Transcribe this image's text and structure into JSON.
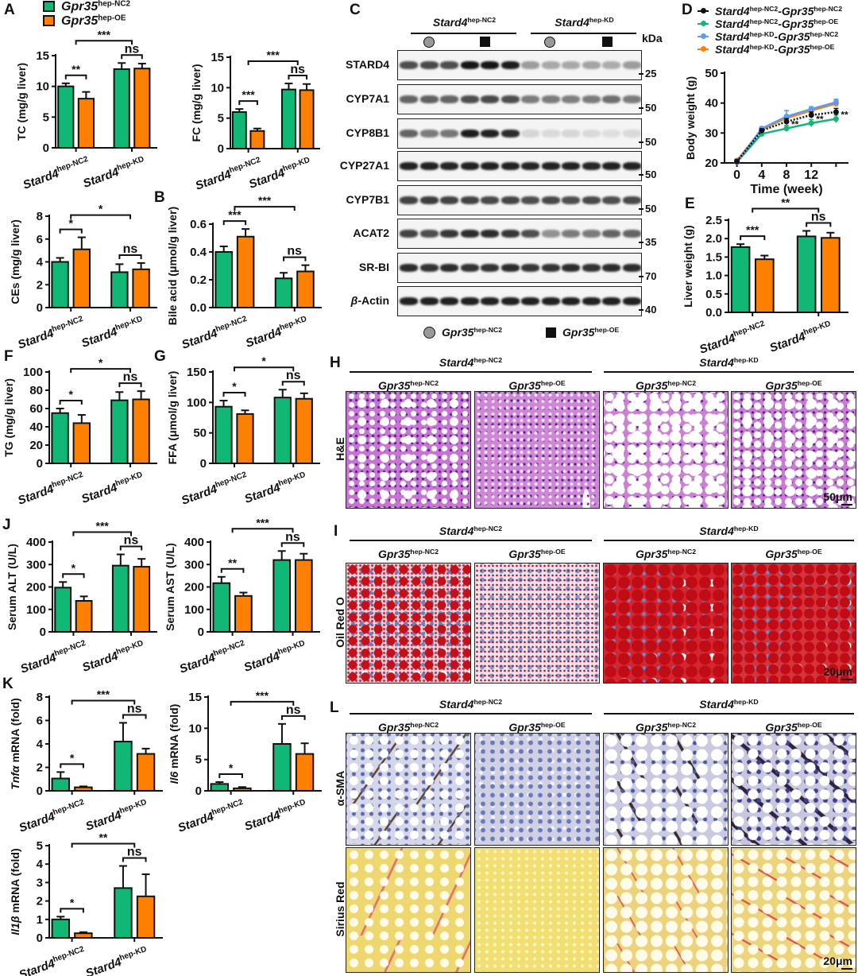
{
  "colors": {
    "nc2": "#10b775",
    "oe": "#ff7f00",
    "kd_nc2": "#5b9cf5",
    "black": "#111111"
  },
  "panels": {
    "A": "A",
    "B": "B",
    "C": "C",
    "D": "D",
    "E": "E",
    "F": "F",
    "G": "G",
    "H": "H",
    "I": "I",
    "J": "J",
    "K": "K",
    "L": "L"
  },
  "legend_A": [
    {
      "gene": "Gpr35",
      "sup": "hep-NC2"
    },
    {
      "gene": "Gpr35",
      "sup": "hep-OE"
    }
  ],
  "groups": {
    "nc2": {
      "gene": "Stard4",
      "sup": "hep-NC2"
    },
    "kd": {
      "gene": "Stard4",
      "sup": "hep-KD"
    }
  },
  "subgroups": {
    "nc2": {
      "gene": "Gpr35",
      "sup": "hep-NC2"
    },
    "oe": {
      "gene": "Gpr35",
      "sup": "hep-OE"
    }
  },
  "blot": {
    "unit": "kDa",
    "rows": [
      {
        "label": "STARD4",
        "kda": "25",
        "intensity": [
          0.7,
          0.72,
          0.7,
          0.95,
          0.95,
          0.92,
          0.35,
          0.3,
          0.3,
          0.32,
          0.28,
          0.35
        ]
      },
      {
        "label": "CYP7A1",
        "kda": "50",
        "intensity": [
          0.6,
          0.62,
          0.6,
          0.7,
          0.72,
          0.7,
          0.5,
          0.5,
          0.48,
          0.5,
          0.55,
          0.5
        ]
      },
      {
        "label": "CYP8B1",
        "kda": "50",
        "intensity": [
          0.6,
          0.5,
          0.52,
          0.92,
          0.9,
          0.85,
          0.1,
          0.08,
          0.1,
          0.08,
          0.06,
          0.08
        ]
      },
      {
        "label": "CYP27A1",
        "kda": "50",
        "intensity": [
          0.9,
          0.9,
          0.88,
          0.9,
          0.9,
          0.9,
          0.88,
          0.9,
          0.9,
          0.88,
          0.9,
          0.9
        ]
      },
      {
        "label": "CYP7B1",
        "kda": "50",
        "intensity": [
          0.75,
          0.78,
          0.75,
          0.75,
          0.72,
          0.74,
          0.7,
          0.72,
          0.7,
          0.72,
          0.7,
          0.72
        ]
      },
      {
        "label": "ACAT2",
        "kda": "35",
        "intensity": [
          0.75,
          0.7,
          0.8,
          0.85,
          0.85,
          0.8,
          0.7,
          0.4,
          0.5,
          0.5,
          0.6,
          0.6
        ]
      },
      {
        "label": "SR-BI",
        "kda": "70",
        "intensity": [
          0.85,
          0.82,
          0.85,
          0.82,
          0.82,
          0.85,
          0.8,
          0.82,
          0.85,
          0.82,
          0.85,
          0.85
        ]
      },
      {
        "label": "β-Actin",
        "kda": "40",
        "intensity": [
          0.9,
          0.9,
          0.9,
          0.9,
          0.9,
          0.9,
          0.9,
          0.9,
          0.9,
          0.9,
          0.9,
          0.9
        ]
      }
    ]
  },
  "histology": {
    "he_label": "H&E",
    "he_scale": "50μm",
    "oro_label": "Oil Red O",
    "oro_scale": "20μm",
    "sma_label": "α-SMA",
    "sr_label": "Sirius Red",
    "sr_scale": "20μm"
  },
  "chart_data": [
    {
      "id": "TC",
      "type": "bar",
      "ylabel": "TC (mg/g liver)",
      "ylim": [
        0,
        15
      ],
      "yticks": [
        "0",
        "5",
        "10",
        "15"
      ],
      "categories": [
        "Stard4 hep-NC2",
        "Stard4 hep-KD"
      ],
      "series": [
        {
          "name": "Gpr35 hep-NC2",
          "values": [
            10.0,
            12.8
          ],
          "errors": [
            0.5,
            1.0
          ]
        },
        {
          "name": "Gpr35 hep-OE",
          "values": [
            8.0,
            12.9
          ],
          "errors": [
            1.1,
            0.8
          ]
        }
      ],
      "significance": {
        "pair_nc2": "**",
        "between": "***",
        "pair_kd": "ns"
      }
    },
    {
      "id": "FC",
      "type": "bar",
      "ylabel": "FC (mg/g liver)",
      "ylim": [
        0,
        15
      ],
      "yticks": [
        "0",
        "5",
        "10",
        "15"
      ],
      "categories": [
        "Stard4 hep-NC2",
        "Stard4 hep-KD"
      ],
      "series": [
        {
          "name": "Gpr35 hep-NC2",
          "values": [
            6.0,
            9.7
          ],
          "errors": [
            0.5,
            1.0
          ]
        },
        {
          "name": "Gpr35 hep-OE",
          "values": [
            2.9,
            9.6
          ],
          "errors": [
            0.4,
            1.0
          ]
        }
      ],
      "significance": {
        "pair_nc2": "***",
        "between": "***",
        "pair_kd": "ns"
      }
    },
    {
      "id": "CE",
      "type": "bar",
      "ylabel": "CEs (mg/g liver)",
      "ylim": [
        0,
        8
      ],
      "yticks": [
        "0",
        "2",
        "4",
        "6",
        "8"
      ],
      "categories": [
        "Stard4 hep-NC2",
        "Stard4 hep-KD"
      ],
      "series": [
        {
          "name": "Gpr35 hep-NC2",
          "values": [
            4.0,
            3.1
          ],
          "errors": [
            0.35,
            0.7
          ]
        },
        {
          "name": "Gpr35 hep-OE",
          "values": [
            5.1,
            3.35
          ],
          "errors": [
            1.05,
            0.55
          ]
        }
      ],
      "significance": {
        "pair_nc2": "*",
        "between": "*",
        "pair_kd": "ns"
      }
    },
    {
      "id": "BA",
      "type": "bar",
      "ylabel": "Bile acid (μmol/g liver)",
      "ylim": [
        0,
        0.6
      ],
      "yticks": [
        "0.0",
        "0.2",
        "0.4",
        "0.6"
      ],
      "categories": [
        "Stard4 hep-NC2",
        "Stard4 hep-KD"
      ],
      "series": [
        {
          "name": "Gpr35 hep-NC2",
          "values": [
            0.4,
            0.21
          ],
          "errors": [
            0.04,
            0.04
          ]
        },
        {
          "name": "Gpr35 hep-OE",
          "values": [
            0.51,
            0.26
          ],
          "errors": [
            0.055,
            0.045
          ]
        }
      ],
      "significance": {
        "pair_nc2": "***",
        "between": "***",
        "pair_kd": "ns"
      }
    },
    {
      "id": "BW",
      "type": "line",
      "ylabel": "Body weight (g)",
      "xlabel": "Time (week)",
      "ylim": [
        20,
        50
      ],
      "xlim": [
        -2,
        18
      ],
      "yticks": [
        "20",
        "30",
        "40",
        "50"
      ],
      "xticks": [
        "0",
        "4",
        "8",
        "12"
      ],
      "x": [
        0,
        4,
        8,
        12,
        16
      ],
      "series": [
        {
          "name": "Stard4 hep-NC2 - Gpr35 hep-NC2",
          "gene1": "Stard4",
          "sup1": "hep-NC2",
          "gene2": "-Gpr35",
          "sup2": "hep-NC2",
          "color": "#111111",
          "dashed": true,
          "values": [
            20.5,
            30.8,
            33.8,
            36.0,
            37.0
          ],
          "errors": [
            0.6,
            0.6,
            1.0,
            1.0,
            1.2
          ]
        },
        {
          "name": "Stard4 hep-NC2 - Gpr35 hep-OE",
          "gene1": "Stard4",
          "sup1": "hep-NC2",
          "gene2": "-Gpr35",
          "sup2": "hep-OE",
          "color": "#10b775",
          "dashed": false,
          "values": [
            20.3,
            29.7,
            31.5,
            33.3,
            34.7
          ],
          "errors": [
            0.6,
            0.8,
            1.0,
            1.2,
            1.3
          ]
        },
        {
          "name": "Stard4 hep-KD - Gpr35 hep-NC2",
          "gene1": "Stard4",
          "sup1": "hep-KD",
          "gene2": "-Gpr35",
          "sup2": "hep-NC2",
          "color": "#5b9cf5",
          "dashed": false,
          "values": [
            20.2,
            31.5,
            35.5,
            38.0,
            40.3
          ],
          "errors": [
            0.6,
            0.6,
            2.0,
            0.8,
            1.0
          ]
        },
        {
          "name": "Stard4 hep-KD - Gpr35 hep-OE",
          "gene1": "Stard4",
          "sup1": "hep-KD",
          "gene2": "-Gpr35",
          "sup2": "hep-OE",
          "color": "#ff7f00",
          "dashed": false,
          "values": [
            20.8,
            31.2,
            35.0,
            37.5,
            39.8
          ],
          "errors": [
            0.6,
            0.6,
            1.0,
            0.8,
            1.0
          ]
        }
      ],
      "annotations": [
        {
          "x": 8,
          "label": "**"
        },
        {
          "x": 12,
          "label": "**"
        },
        {
          "x": 16,
          "label": "**"
        }
      ]
    },
    {
      "id": "LW",
      "type": "bar",
      "ylabel": "Liver weight (g)",
      "ylim": [
        0,
        2.5
      ],
      "yticks": [
        "0.0",
        "0.5",
        "1.0",
        "1.5",
        "2.0",
        "2.5"
      ],
      "categories": [
        "Stard4 hep-NC2",
        "Stard4 hep-KD"
      ],
      "series": [
        {
          "name": "Gpr35 hep-NC2",
          "values": [
            1.77,
            2.06
          ],
          "errors": [
            0.08,
            0.15
          ]
        },
        {
          "name": "Gpr35 hep-OE",
          "values": [
            1.44,
            2.02
          ],
          "errors": [
            0.1,
            0.14
          ]
        }
      ],
      "significance": {
        "pair_nc2": "***",
        "between": "**",
        "pair_kd": "ns"
      }
    },
    {
      "id": "TG",
      "type": "bar",
      "ylabel": "TG (mg/g liver)",
      "ylim": [
        0,
        100
      ],
      "yticks": [
        "0",
        "20",
        "40",
        "60",
        "80",
        "100"
      ],
      "categories": [
        "Stard4 hep-NC2",
        "Stard4 hep-KD"
      ],
      "series": [
        {
          "name": "Gpr35 hep-NC2",
          "values": [
            55,
            69
          ],
          "errors": [
            5,
            9
          ]
        },
        {
          "name": "Gpr35 hep-OE",
          "values": [
            44,
            70
          ],
          "errors": [
            9,
            9
          ]
        }
      ],
      "significance": {
        "pair_nc2": "*",
        "between": "*",
        "pair_kd": "ns"
      }
    },
    {
      "id": "FFA",
      "type": "bar",
      "ylabel": "FFA (μmol/g liver)",
      "ylim": [
        0,
        150
      ],
      "yticks": [
        "0",
        "50",
        "100",
        "150"
      ],
      "categories": [
        "Stard4 hep-NC2",
        "Stard4 hep-KD"
      ],
      "series": [
        {
          "name": "Gpr35 hep-NC2",
          "values": [
            93,
            108
          ],
          "errors": [
            10,
            13
          ]
        },
        {
          "name": "Gpr35 hep-OE",
          "values": [
            81,
            106
          ],
          "errors": [
            6,
            9
          ]
        }
      ],
      "significance": {
        "pair_nc2": "*",
        "between": "*",
        "pair_kd": "ns"
      }
    },
    {
      "id": "ALT",
      "type": "bar",
      "ylabel": "Serum ALT (U/L)",
      "ylim": [
        0,
        400
      ],
      "yticks": [
        "0",
        "100",
        "200",
        "300",
        "400"
      ],
      "categories": [
        "Stard4 hep-NC2",
        "Stard4 hep-KD"
      ],
      "series": [
        {
          "name": "Gpr35 hep-NC2",
          "values": [
            197,
            295
          ],
          "errors": [
            25,
            50
          ]
        },
        {
          "name": "Gpr35 hep-OE",
          "values": [
            138,
            290
          ],
          "errors": [
            20,
            35
          ]
        }
      ],
      "significance": {
        "pair_nc2": "*",
        "between": "***",
        "pair_kd": "ns"
      }
    },
    {
      "id": "AST",
      "type": "bar",
      "ylabel": "Serum AST (U/L)",
      "ylim": [
        0,
        400
      ],
      "yticks": [
        "0",
        "100",
        "200",
        "300",
        "400"
      ],
      "categories": [
        "Stard4 hep-NC2",
        "Stard4 hep-KD"
      ],
      "series": [
        {
          "name": "Gpr35 hep-NC2",
          "values": [
            217,
            320
          ],
          "errors": [
            28,
            40
          ]
        },
        {
          "name": "Gpr35 hep-OE",
          "values": [
            160,
            320
          ],
          "errors": [
            15,
            28
          ]
        }
      ],
      "significance": {
        "pair_nc2": "**",
        "between": "***",
        "pair_kd": "ns"
      }
    },
    {
      "id": "TNF",
      "type": "bar",
      "ylabel_italic": "Tnfα",
      "ylabel": " mRNA (fold)",
      "ylim": [
        0,
        8
      ],
      "yticks": [
        "0",
        "2",
        "4",
        "6",
        "8"
      ],
      "categories": [
        "Stard4 hep-NC2",
        "Stard4 hep-KD"
      ],
      "series": [
        {
          "name": "Gpr35 hep-NC2",
          "values": [
            1.05,
            4.2
          ],
          "errors": [
            0.55,
            1.6
          ]
        },
        {
          "name": "Gpr35 hep-OE",
          "values": [
            0.3,
            3.15
          ],
          "errors": [
            0.08,
            0.45
          ]
        }
      ],
      "significance": {
        "pair_nc2": "*",
        "between": "***",
        "pair_kd": "ns"
      }
    },
    {
      "id": "IL6",
      "type": "bar",
      "ylabel_italic": "Il6",
      "ylabel": " mRNA (fold)",
      "ylim": [
        0,
        15
      ],
      "yticks": [
        "0",
        "5",
        "10",
        "15"
      ],
      "categories": [
        "Stard4 hep-NC2",
        "Stard4 hep-KD"
      ],
      "series": [
        {
          "name": "Gpr35 hep-NC2",
          "values": [
            1.1,
            7.5
          ],
          "errors": [
            0.3,
            3.2
          ]
        },
        {
          "name": "Gpr35 hep-OE",
          "values": [
            0.4,
            5.9
          ],
          "errors": [
            0.2,
            1.7
          ]
        }
      ],
      "significance": {
        "pair_nc2": "*",
        "between": "***",
        "pair_kd": "ns"
      }
    },
    {
      "id": "IL1B",
      "type": "bar",
      "ylabel_italic": "Il1β",
      "ylabel": " mRNA (fold)",
      "ylim": [
        0,
        5
      ],
      "yticks": [
        "0",
        "1",
        "2",
        "3",
        "4",
        "5"
      ],
      "categories": [
        "Stard4 hep-NC2",
        "Stard4 hep-KD"
      ],
      "series": [
        {
          "name": "Gpr35 hep-NC2",
          "values": [
            1.0,
            2.7
          ],
          "errors": [
            0.15,
            1.2
          ]
        },
        {
          "name": "Gpr35 hep-OE",
          "values": [
            0.25,
            2.25
          ],
          "errors": [
            0.06,
            1.2
          ]
        }
      ],
      "significance": {
        "pair_nc2": "*",
        "between": "**",
        "pair_kd": "ns"
      }
    }
  ]
}
